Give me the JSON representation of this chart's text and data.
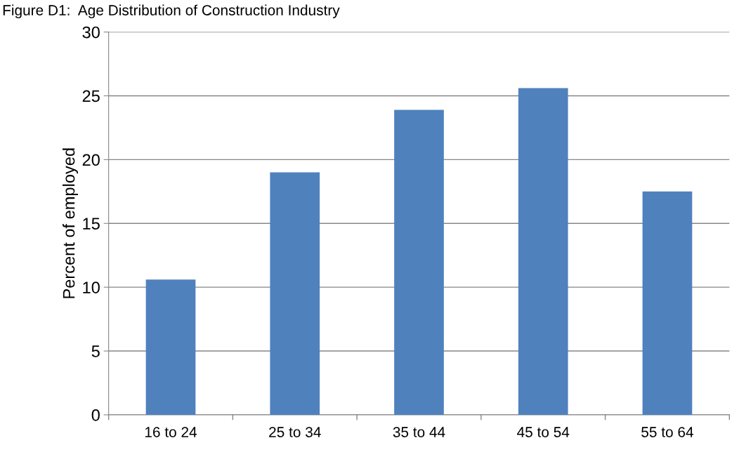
{
  "chart_data": {
    "type": "bar",
    "title": "Figure D1:  Age Distribution of Construction Industry",
    "ylabel": "Percent of employed",
    "categories": [
      "16 to 24",
      "25 to 34",
      "35 to 44",
      "45 to 54",
      "55 to 64"
    ],
    "values": [
      10.6,
      19.0,
      23.9,
      25.6,
      17.5
    ],
    "color": "#4f81bd",
    "ylim": [
      0,
      30
    ],
    "yticks": [
      0,
      5,
      10,
      15,
      20,
      25,
      30
    ],
    "grid": "y",
    "legend": false
  }
}
